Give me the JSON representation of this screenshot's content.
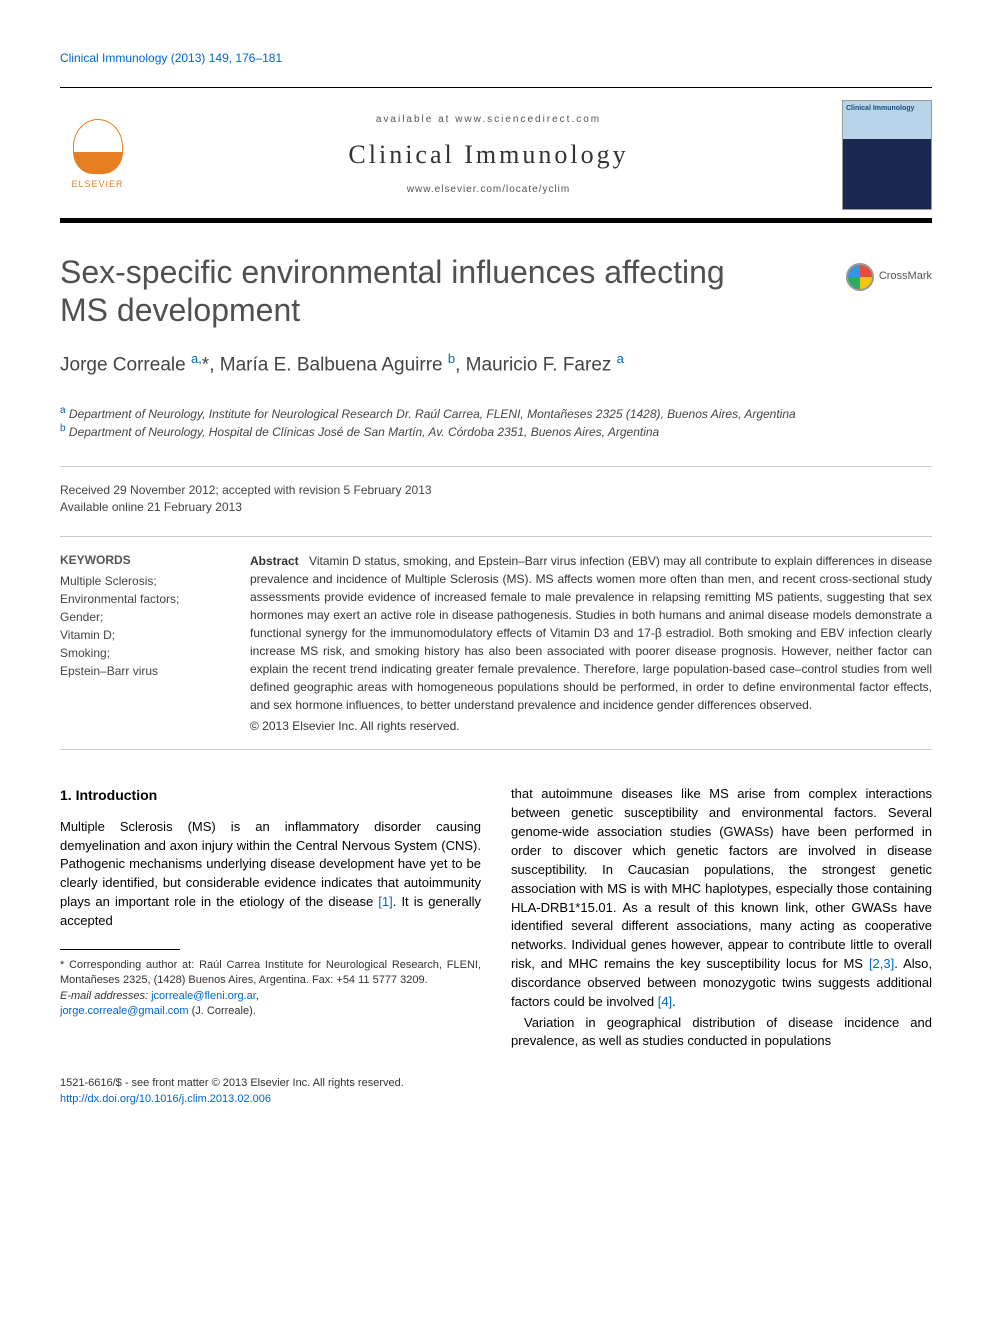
{
  "journal_ref": "Clinical Immunology (2013) 149, 176–181",
  "masthead": {
    "available": "available at www.sciencedirect.com",
    "journal": "Clinical Immunology",
    "url": "www.elsevier.com/locate/yclim",
    "publisher": "ELSEVIER",
    "cover_title": "Clinical Immunology"
  },
  "article": {
    "title": "Sex-specific environmental influences affecting MS development",
    "crossmark": "CrossMark",
    "authors_html": "Jorge Correale <sup>a,</sup>*, María E. Balbuena Aguirre <sup>b</sup>, Mauricio F. Farez <sup>a</sup>",
    "affiliations": [
      {
        "sup": "a",
        "text": "Department of Neurology, Institute for Neurological Research Dr. Raúl Carrea, FLENI, Montañeses 2325 (1428), Buenos Aires, Argentina"
      },
      {
        "sup": "b",
        "text": "Department of Neurology, Hospital de Clínicas José de San Martín, Av. Córdoba 2351, Buenos Aires, Argentina"
      }
    ],
    "dates": {
      "received": "Received 29 November 2012; accepted with revision 5 February 2013",
      "online": "Available online 21 February 2013"
    }
  },
  "keywords": {
    "heading": "KEYWORDS",
    "items": "Multiple Sclerosis;\nEnvironmental factors;\nGender;\nVitamin D;\nSmoking;\nEpstein–Barr virus"
  },
  "abstract": {
    "label": "Abstract",
    "text": "Vitamin D status, smoking, and Epstein–Barr virus infection (EBV) may all contribute to explain differences in disease prevalence and incidence of Multiple Sclerosis (MS). MS affects women more often than men, and recent cross-sectional study assessments provide evidence of increased female to male prevalence in relapsing remitting MS patients, suggesting that sex hormones may exert an active role in disease pathogenesis. Studies in both humans and animal disease models demonstrate a functional synergy for the immunomodulatory effects of Vitamin D3 and 17-β estradiol. Both smoking and EBV infection clearly increase MS risk, and smoking history has also been associated with poorer disease prognosis. However, neither factor can explain the recent trend indicating greater female prevalence. Therefore, large population-based case–control studies from well defined geographic areas with homogeneous populations should be performed, in order to define environmental factor effects, and sex hormone influences, to better understand prevalence and incidence gender differences observed.",
    "copyright": "© 2013 Elsevier Inc. All rights reserved."
  },
  "body": {
    "intro_heading": "1. Introduction",
    "col1_p1": "Multiple Sclerosis (MS) is an inflammatory disorder causing demyelination and axon injury within the Central Nervous System (CNS). Pathogenic mechanisms underlying disease development have yet to be clearly identified, but considerable evidence indicates that autoimmunity plays an important role in the etiology of the disease ",
    "ref1": "[1]",
    "col1_p1_end": ". It is generally accepted",
    "col2_p1": "that autoimmune diseases like MS arise from complex interactions between genetic susceptibility and environmental factors. Several genome-wide association studies (GWASs) have been performed in order to discover which genetic factors are involved in disease susceptibility. In Caucasian populations, the strongest genetic association with MS is with MHC haplotypes, especially those containing HLA-DRB1*15.01. As a result of this known link, other GWASs have identified several different associations, many acting as cooperative networks. Individual genes however, appear to contribute little to overall risk, and MHC remains the key susceptibility locus for MS ",
    "ref23": "[2,3]",
    "col2_p1_mid": ". Also, discordance observed between monozygotic twins suggests additional factors could be involved ",
    "ref4": "[4]",
    "col2_p1_end": ".",
    "col2_p2": "Variation in geographical distribution of disease incidence and prevalence, as well as studies conducted in populations"
  },
  "corresponding": {
    "star": "* Corresponding author at: Raúl Carrea Institute for Neurological Research, FLENI, Montañeses 2325, (1428) Buenos Aires, Argentina. Fax: +54 11 5777 3209.",
    "email_label": "E-mail addresses:",
    "email1": "jcorreale@fleni.org.ar",
    "email2": "jorge.correale@gmail.com",
    "email_suffix": "(J. Correale)."
  },
  "footer": {
    "issn": "1521-6616/$ - see front matter © 2013 Elsevier Inc. All rights reserved.",
    "doi": "http://dx.doi.org/10.1016/j.clim.2013.02.006"
  },
  "colors": {
    "link": "#0066cc",
    "text": "#333333",
    "elsevier": "#e67e22"
  }
}
